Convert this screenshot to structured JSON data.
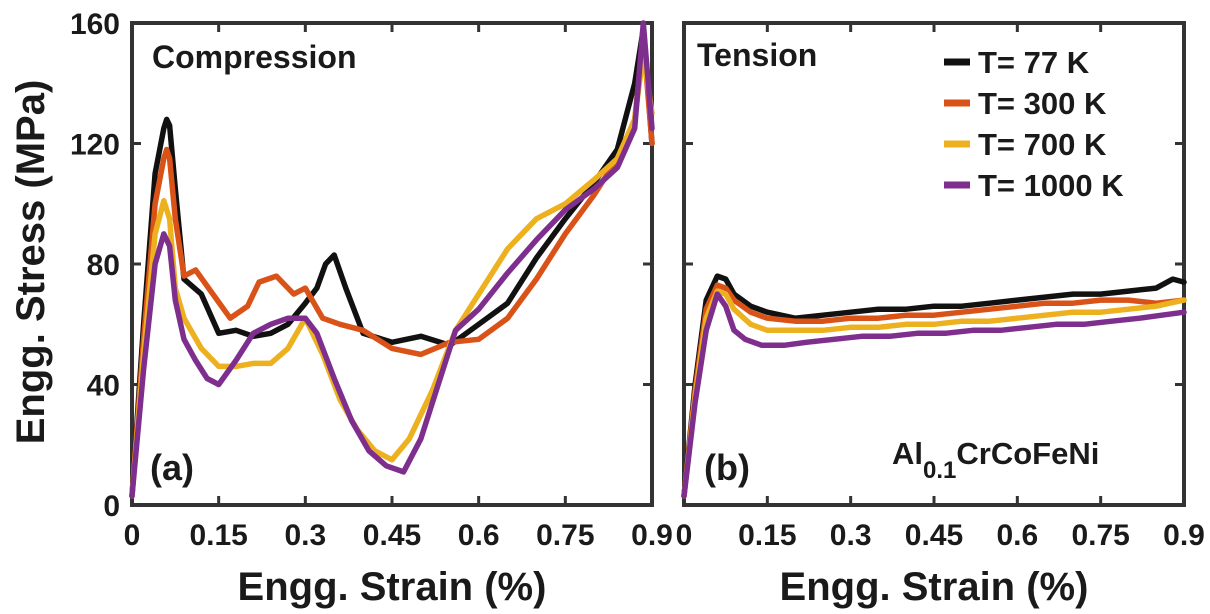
{
  "chart_data": [
    {
      "type": "line",
      "panel_label": "(a)",
      "title": "Compression",
      "xlabel": "Engg. Strain (%)",
      "ylabel": "Engg. Stress (MPa)",
      "xlim": [
        0,
        0.9
      ],
      "ylim": [
        0,
        160
      ],
      "xticks": [
        "0",
        "0.15",
        "0.3",
        "0.45",
        "0.6",
        "0.75",
        "0.9"
      ],
      "yticks": [
        "0",
        "40",
        "80",
        "120",
        "160"
      ],
      "grid": false,
      "series": [
        {
          "name": "T= 77 K",
          "color": "#111111",
          "x": [
            0,
            0.02,
            0.04,
            0.055,
            0.06,
            0.065,
            0.075,
            0.09,
            0.12,
            0.15,
            0.18,
            0.21,
            0.24,
            0.27,
            0.3,
            0.32,
            0.335,
            0.35,
            0.37,
            0.4,
            0.45,
            0.5,
            0.55,
            0.6,
            0.65,
            0.7,
            0.75,
            0.8,
            0.84,
            0.87,
            0.885,
            0.9
          ],
          "y": [
            3,
            60,
            110,
            125,
            128,
            126,
            105,
            75,
            70,
            57,
            58,
            56,
            57,
            60,
            67,
            72,
            80,
            83,
            72,
            57,
            54,
            56,
            53,
            60,
            67,
            82,
            95,
            107,
            118,
            140,
            158,
            120
          ]
        },
        {
          "name": "T= 300 K",
          "color": "#d95319",
          "x": [
            0,
            0.02,
            0.04,
            0.055,
            0.06,
            0.065,
            0.075,
            0.09,
            0.11,
            0.14,
            0.17,
            0.2,
            0.22,
            0.25,
            0.28,
            0.3,
            0.33,
            0.36,
            0.4,
            0.45,
            0.5,
            0.55,
            0.6,
            0.65,
            0.7,
            0.75,
            0.8,
            0.84,
            0.87,
            0.885,
            0.9
          ],
          "y": [
            3,
            55,
            100,
            115,
            118,
            115,
            95,
            76,
            78,
            70,
            62,
            66,
            74,
            76,
            70,
            72,
            62,
            60,
            58,
            52,
            50,
            54,
            55,
            62,
            75,
            90,
            103,
            115,
            128,
            155,
            120
          ]
        },
        {
          "name": "T= 700 K",
          "color": "#edb120",
          "x": [
            0,
            0.02,
            0.04,
            0.055,
            0.065,
            0.075,
            0.09,
            0.12,
            0.15,
            0.18,
            0.21,
            0.24,
            0.27,
            0.3,
            0.33,
            0.36,
            0.39,
            0.42,
            0.45,
            0.48,
            0.52,
            0.56,
            0.6,
            0.65,
            0.7,
            0.75,
            0.8,
            0.84,
            0.87,
            0.885,
            0.9
          ],
          "y": [
            3,
            50,
            90,
            101,
            95,
            72,
            62,
            52,
            46,
            46,
            47,
            47,
            52,
            62,
            50,
            35,
            25,
            18,
            15,
            22,
            38,
            58,
            70,
            85,
            95,
            100,
            108,
            115,
            128,
            150,
            130
          ]
        },
        {
          "name": "T= 1000 K",
          "color": "#7e2f8e",
          "x": [
            0,
            0.02,
            0.04,
            0.055,
            0.065,
            0.075,
            0.09,
            0.11,
            0.13,
            0.15,
            0.18,
            0.21,
            0.24,
            0.27,
            0.3,
            0.32,
            0.35,
            0.38,
            0.41,
            0.44,
            0.47,
            0.5,
            0.53,
            0.56,
            0.6,
            0.65,
            0.7,
            0.75,
            0.8,
            0.84,
            0.87,
            0.885,
            0.9
          ],
          "y": [
            3,
            45,
            80,
            90,
            86,
            68,
            55,
            48,
            42,
            40,
            48,
            57,
            60,
            62,
            62,
            57,
            42,
            28,
            18,
            13,
            11,
            22,
            40,
            58,
            65,
            77,
            88,
            98,
            105,
            112,
            125,
            160,
            125
          ]
        }
      ]
    },
    {
      "type": "line",
      "panel_label": "(b)",
      "title": "Tension",
      "annotation": {
        "base": "Al",
        "subscript": "0.1",
        "rest": "CrCoFeNi"
      },
      "xlabel": "Engg. Strain (%)",
      "ylabel": "",
      "xlim": [
        0,
        0.9
      ],
      "ylim": [
        0,
        160
      ],
      "xticks": [
        "0",
        "0.15",
        "0.3",
        "0.45",
        "0.6",
        "0.75",
        "0.9"
      ],
      "legend_position": "top-right",
      "grid": false,
      "series": [
        {
          "name": "T= 77 K",
          "color": "#111111",
          "x": [
            0,
            0.02,
            0.04,
            0.06,
            0.075,
            0.09,
            0.12,
            0.15,
            0.2,
            0.25,
            0.3,
            0.35,
            0.4,
            0.45,
            0.5,
            0.55,
            0.6,
            0.65,
            0.7,
            0.75,
            0.8,
            0.85,
            0.88,
            0.9
          ],
          "y": [
            3,
            40,
            68,
            76,
            75,
            70,
            66,
            64,
            62,
            63,
            64,
            65,
            65,
            66,
            66,
            67,
            68,
            69,
            70,
            70,
            71,
            72,
            75,
            74
          ]
        },
        {
          "name": "T= 300 K",
          "color": "#d95319",
          "x": [
            0,
            0.02,
            0.04,
            0.06,
            0.075,
            0.09,
            0.12,
            0.15,
            0.2,
            0.25,
            0.3,
            0.35,
            0.4,
            0.45,
            0.5,
            0.55,
            0.6,
            0.65,
            0.7,
            0.75,
            0.8,
            0.85,
            0.9
          ],
          "y": [
            3,
            38,
            65,
            73,
            72,
            68,
            64,
            62,
            61,
            61,
            62,
            62,
            63,
            63,
            64,
            65,
            66,
            67,
            67,
            68,
            68,
            67,
            68
          ]
        },
        {
          "name": "T= 700 K",
          "color": "#edb120",
          "x": [
            0,
            0.02,
            0.04,
            0.06,
            0.075,
            0.09,
            0.12,
            0.15,
            0.2,
            0.25,
            0.3,
            0.35,
            0.4,
            0.45,
            0.5,
            0.55,
            0.6,
            0.65,
            0.7,
            0.75,
            0.8,
            0.85,
            0.9
          ],
          "y": [
            3,
            36,
            62,
            71,
            70,
            65,
            60,
            58,
            58,
            58,
            59,
            59,
            60,
            60,
            61,
            61,
            62,
            63,
            64,
            64,
            65,
            66,
            68
          ]
        },
        {
          "name": "T= 1000 K",
          "color": "#7e2f8e",
          "x": [
            0,
            0.02,
            0.04,
            0.06,
            0.075,
            0.09,
            0.11,
            0.14,
            0.18,
            0.22,
            0.27,
            0.32,
            0.37,
            0.42,
            0.47,
            0.52,
            0.57,
            0.62,
            0.67,
            0.72,
            0.77,
            0.82,
            0.86,
            0.9
          ],
          "y": [
            3,
            34,
            58,
            70,
            66,
            58,
            55,
            53,
            53,
            54,
            55,
            56,
            56,
            57,
            57,
            58,
            58,
            59,
            60,
            60,
            61,
            62,
            63,
            64
          ]
        }
      ]
    }
  ]
}
